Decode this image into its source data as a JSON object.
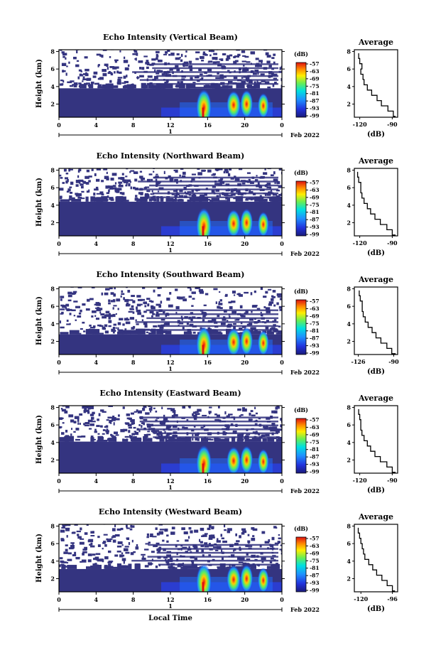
{
  "chart_data": [
    {
      "type": "heatmap",
      "title": "Echo Intensity (Vertical Beam)",
      "ylabel": "Height (km)",
      "yticks": [
        "2",
        "4",
        "6",
        "8"
      ],
      "ylim": [
        0.5,
        8.2
      ],
      "xticks": [
        "0",
        "4",
        "8",
        "12",
        "16",
        "20",
        "0"
      ],
      "xlim": [
        0,
        24
      ],
      "date_marker": "1",
      "date_label": "Feb 2022",
      "colorbar": {
        "unit": "(dB)",
        "ticks": [
          "-57",
          "-63",
          "-69",
          "-75",
          "-81",
          "-87",
          "-93",
          "-99"
        ]
      },
      "profile": {
        "title": "Average",
        "xlabel": "(dB)",
        "xticks": [
          "-120",
          "-90"
        ],
        "xlim": [
          -125,
          -85
        ],
        "yticks": [
          "2",
          "4",
          "6",
          "8"
        ],
        "ylim": [
          0.5,
          8.2
        ],
        "x": [
          -87,
          -89,
          -94,
          -100,
          -104,
          -109,
          -113,
          -116,
          -117,
          -119,
          -118,
          -120,
          -121
        ],
        "y": [
          0.6,
          1.2,
          1.8,
          2.4,
          3.0,
          3.6,
          4.2,
          4.8,
          5.4,
          6.0,
          6.6,
          7.2,
          7.8
        ]
      }
    },
    {
      "type": "heatmap",
      "title": "Echo Intensity (Northward Beam)",
      "ylabel": "Height (km)",
      "yticks": [
        "2",
        "4",
        "6",
        "8"
      ],
      "ylim": [
        0.5,
        8.2
      ],
      "xticks": [
        "0",
        "4",
        "8",
        "12",
        "16",
        "20",
        "0"
      ],
      "xlim": [
        0,
        24
      ],
      "date_marker": "1",
      "date_label": "Feb 2022",
      "colorbar": {
        "unit": "(dB)",
        "ticks": [
          "-57",
          "-63",
          "-69",
          "-75",
          "-81",
          "-87",
          "-93",
          "-99"
        ]
      },
      "profile": {
        "title": "Average",
        "xlabel": "(dB)",
        "xticks": [
          "-120",
          "-90"
        ],
        "xlim": [
          -125,
          -85
        ],
        "yticks": [
          "2",
          "4",
          "6",
          "8"
        ],
        "ylim": [
          0.5,
          8.2
        ],
        "x": [
          -87,
          -90,
          -95,
          -101,
          -106,
          -110,
          -113,
          -116,
          -118,
          -119,
          -119,
          -121,
          -122
        ],
        "y": [
          0.6,
          1.2,
          1.8,
          2.4,
          3.0,
          3.6,
          4.2,
          4.8,
          5.4,
          6.0,
          6.6,
          7.2,
          7.8
        ]
      }
    },
    {
      "type": "heatmap",
      "title": "Echo Intensity (Southward Beam)",
      "ylabel": "Height (km)",
      "yticks": [
        "2",
        "4",
        "6",
        "8"
      ],
      "ylim": [
        0.5,
        8.2
      ],
      "xticks": [
        "0",
        "4",
        "8",
        "12",
        "16",
        "20",
        "0"
      ],
      "xlim": [
        0,
        24
      ],
      "date_marker": "1",
      "date_label": "Feb 2022",
      "colorbar": {
        "unit": "(dB)",
        "ticks": [
          "-57",
          "-63",
          "-69",
          "-75",
          "-81",
          "-87",
          "-93",
          "-99"
        ]
      },
      "profile": {
        "title": "Average",
        "xlabel": "(dB)",
        "xticks": [
          "-126",
          "-90"
        ],
        "xlim": [
          -130,
          -86
        ],
        "yticks": [
          "2",
          "4",
          "6",
          "8"
        ],
        "ylim": [
          0.5,
          8.2
        ],
        "x": [
          -88,
          -92,
          -97,
          -103,
          -108,
          -112,
          -116,
          -119,
          -121,
          -122,
          -122,
          -124,
          -125
        ],
        "y": [
          0.6,
          1.2,
          1.8,
          2.4,
          3.0,
          3.6,
          4.2,
          4.8,
          5.4,
          6.0,
          6.6,
          7.2,
          7.8
        ]
      }
    },
    {
      "type": "heatmap",
      "title": "Echo Intensity (Eastward Beam)",
      "ylabel": "Height (km)",
      "yticks": [
        "2",
        "4",
        "6",
        "8"
      ],
      "ylim": [
        0.5,
        8.2
      ],
      "xticks": [
        "0",
        "4",
        "8",
        "12",
        "16",
        "20",
        "0"
      ],
      "xlim": [
        0,
        24
      ],
      "date_marker": "1",
      "date_label": "Feb 2022",
      "colorbar": {
        "unit": "(dB)",
        "ticks": [
          "-57",
          "-63",
          "-69",
          "-75",
          "-81",
          "-87",
          "-93",
          "-99"
        ]
      },
      "profile": {
        "title": "Average",
        "xlabel": "(dB)",
        "xticks": [
          "-120",
          "-90"
        ],
        "xlim": [
          -125,
          -85
        ],
        "yticks": [
          "2",
          "4",
          "6",
          "8"
        ],
        "ylim": [
          0.5,
          8.2
        ],
        "x": [
          -87,
          -90,
          -95,
          -101,
          -106,
          -110,
          -113,
          -116,
          -118,
          -119,
          -119,
          -120,
          -121
        ],
        "y": [
          0.6,
          1.2,
          1.8,
          2.4,
          3.0,
          3.6,
          4.2,
          4.8,
          5.4,
          6.0,
          6.6,
          7.2,
          7.8
        ]
      }
    },
    {
      "type": "heatmap",
      "title": "Echo Intensity (Westward Beam)",
      "ylabel": "Height (km)",
      "yticks": [
        "2",
        "4",
        "6",
        "8"
      ],
      "ylim": [
        0.5,
        8.2
      ],
      "xticks": [
        "0",
        "4",
        "8",
        "12",
        "16",
        "20",
        "0"
      ],
      "xlim": [
        0,
        24
      ],
      "date_marker": "1",
      "date_label": "Feb 2022",
      "xlabel": "Local Time",
      "colorbar": {
        "unit": "(dB)",
        "ticks": [
          "-57",
          "-63",
          "-69",
          "-75",
          "-81",
          "-87",
          "-93",
          "-99"
        ]
      },
      "profile": {
        "title": "Average",
        "xlabel": "(dB)",
        "xticks": [
          "-120",
          "-96"
        ],
        "xlim": [
          -125,
          -92
        ],
        "yticks": [
          "2",
          "4",
          "6",
          "8"
        ],
        "ylim": [
          0.5,
          8.2
        ],
        "x": [
          -94,
          -96,
          -100,
          -104,
          -108,
          -111,
          -114,
          -117,
          -118,
          -119,
          -120,
          -121,
          -122
        ],
        "y": [
          0.6,
          1.2,
          1.8,
          2.4,
          3.0,
          3.6,
          4.2,
          4.8,
          5.4,
          6.0,
          6.6,
          7.2,
          7.8
        ]
      }
    }
  ]
}
